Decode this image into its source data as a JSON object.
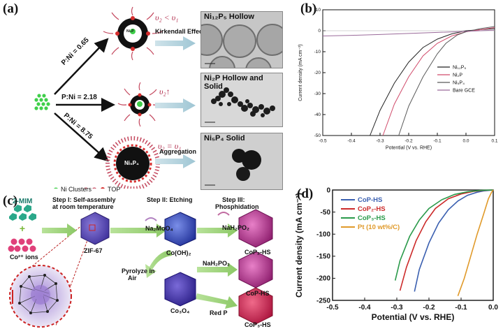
{
  "panel_a": {
    "label": "(a)",
    "ratio_1": "P:Ni = 0.65",
    "ratio_2": "P:Ni = 2.18",
    "ratio_3": "P:Ni = 8.75",
    "rate_1": "υ₂ < υ₁",
    "rate_2": "υ₂↑",
    "rate_3": "υ₂ = υ₁",
    "effect_1": "Kirkendall Effect",
    "effect_3": "Aggregation",
    "core_1": "Ni₂P",
    "core_3": "Ni₅P₄",
    "micro_1_title": "Ni₁₂P₅ Hollow",
    "micro_2_title": "Ni₂P Hollow and Solid",
    "micro_3_title": "Ni₅P₄ Solid",
    "legend_clusters": "Ni Clusters",
    "legend_top": "TOP"
  },
  "panel_b": {
    "label": "(b)",
    "ylabel": "Current density (mA cm⁻²)",
    "xlabel": "Potential (V vs. RHE)",
    "legend": [
      "Ni₁₂P₅",
      "Ni₂P",
      "Ni₅P₄",
      "Bare GCE"
    ]
  },
  "panel_c": {
    "label": "(c)",
    "step1": "Step I: Self-assembly",
    "step1b": "at room temperature",
    "step2": "Step II: Etching",
    "step3": "Step III:",
    "step3b": "Phosphidation",
    "mim": "2-MIM",
    "co_ions": "Co²⁺ ions",
    "zif": "ZIF-67",
    "na2moo4": "Na₂MoO₄",
    "nah2po2_1": "NaH₂PO₂",
    "nah2po2_2": "NaH₂PO₂",
    "redp": "Red P",
    "coho": "Co(OH)₂",
    "co3o4": "Co₃O₄",
    "pyro": "Pyrolyze in",
    "pyro2": "Air",
    "cop2": "CoP₂-HS",
    "cop": "CoP-HS",
    "cop3": "CoP₃-HS"
  },
  "panel_d": {
    "label": "(d)",
    "ylabel": "Current density (mA cm⁻²)",
    "xlabel": "Potential (V vs. RHE)",
    "legend": [
      "CoP-HS",
      "CoP₂-HS",
      "CoP₃-HS",
      "Pt (10 wt%/C)"
    ]
  },
  "chart_data": [
    {
      "type": "line",
      "panel": "(b)",
      "xlabel": "Potential (V vs. RHE)",
      "ylabel": "Current density (mA cm⁻²)",
      "xlim": [
        -0.5,
        0.1
      ],
      "ylim": [
        -50,
        10
      ],
      "xticks": [
        -0.5,
        -0.4,
        -0.3,
        -0.2,
        -0.1,
        0.0,
        0.1
      ],
      "yticks": [
        -50,
        -40,
        -30,
        -20,
        -10,
        0,
        10
      ],
      "legend_position": "right",
      "series": [
        {
          "name": "Ni₁₂P₅",
          "color": "#222222",
          "x": [
            -0.335,
            -0.3,
            -0.25,
            -0.2,
            -0.15,
            -0.1,
            -0.05,
            0.0,
            0.05,
            0.1
          ],
          "y": [
            -50,
            -38,
            -25,
            -15,
            -8,
            -4,
            -1.5,
            0,
            0.5,
            1
          ]
        },
        {
          "name": "Ni₂P",
          "color": "#d04a6a",
          "x": [
            -0.29,
            -0.25,
            -0.2,
            -0.15,
            -0.1,
            -0.05,
            0.0,
            0.05,
            0.1
          ],
          "y": [
            -50,
            -35,
            -22,
            -12,
            -6,
            -2.5,
            -0.5,
            0.5,
            1.5
          ]
        },
        {
          "name": "Ni₅P₄",
          "color": "#5a5a5a",
          "x": [
            -0.235,
            -0.2,
            -0.15,
            -0.1,
            -0.07,
            -0.03,
            0.0,
            0.05,
            0.1
          ],
          "y": [
            -50,
            -36,
            -22,
            -11,
            -6,
            -2,
            -0.5,
            1,
            2
          ]
        },
        {
          "name": "Bare GCE",
          "color": "#9a6a9a",
          "x": [
            -0.5,
            -0.4,
            -0.3,
            -0.2,
            -0.1,
            0.0,
            0.05,
            0.1
          ],
          "y": [
            -2.5,
            -2.2,
            -1.8,
            -1.3,
            -0.8,
            -0.3,
            0,
            0.3
          ]
        }
      ]
    },
    {
      "type": "line",
      "panel": "(d)",
      "xlabel": "Potential (V vs. RHE)",
      "ylabel": "Current density (mA cm⁻²)",
      "xlim": [
        -0.5,
        0.0
      ],
      "ylim": [
        -250,
        0
      ],
      "xticks": [
        -0.5,
        -0.4,
        -0.3,
        -0.2,
        -0.1,
        0.0
      ],
      "yticks": [
        -250,
        -200,
        -150,
        -100,
        -50,
        0
      ],
      "legend_position": "top-left",
      "series": [
        {
          "name": "CoP-HS",
          "color": "#3a5fb0",
          "x": [
            -0.245,
            -0.23,
            -0.2,
            -0.17,
            -0.14,
            -0.11,
            -0.08,
            -0.05,
            -0.03,
            0.0
          ],
          "y": [
            -230,
            -180,
            -120,
            -75,
            -45,
            -25,
            -12,
            -5,
            -2,
            0
          ]
        },
        {
          "name": "CoP₂-HS",
          "color": "#cc2a2a",
          "x": [
            -0.29,
            -0.27,
            -0.24,
            -0.21,
            -0.18,
            -0.14,
            -0.1,
            -0.06,
            -0.03,
            0.0
          ],
          "y": [
            -228,
            -175,
            -115,
            -72,
            -42,
            -20,
            -9,
            -3,
            -1,
            0
          ]
        },
        {
          "name": "CoP₃-HS",
          "color": "#2a9a4a",
          "x": [
            -0.305,
            -0.29,
            -0.26,
            -0.23,
            -0.2,
            -0.16,
            -0.12,
            -0.08,
            -0.04,
            0.0
          ],
          "y": [
            -205,
            -160,
            -105,
            -68,
            -42,
            -22,
            -10,
            -4,
            -1,
            0
          ]
        },
        {
          "name": "Pt (10 wt%/C)",
          "color": "#e09a2a",
          "x": [
            -0.11,
            -0.09,
            -0.07,
            -0.05,
            -0.03,
            -0.015,
            -0.005,
            0.0
          ],
          "y": [
            -240,
            -200,
            -150,
            -100,
            -55,
            -20,
            -5,
            0
          ]
        }
      ]
    }
  ]
}
